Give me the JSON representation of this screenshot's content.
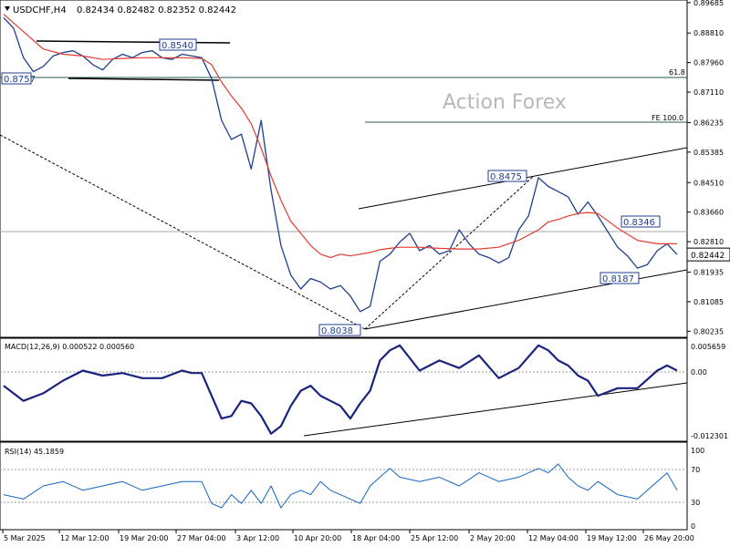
{
  "header": {
    "symbol": "USDCHF,H4",
    "ohlc": "0.82434 0.82482 0.82352 0.82442"
  },
  "watermark": "Action Forex",
  "macd": {
    "label": "MACD(12,26,9) 0.000522 0.000560",
    "ticks": [
      "0.005659",
      "0.00",
      "-0.012301"
    ]
  },
  "rsi": {
    "label": "RSI(14) 45.1859",
    "ticks": [
      "100",
      "70",
      "30",
      "0"
    ]
  },
  "annotations": {
    "fib_618": "61.8",
    "fe_100": "FE 100.0",
    "box_08540": "0.8540",
    "box_08757": "0.8757",
    "box_08475": "0.8475",
    "box_08038": "0.8038",
    "box_08346": "0.8346",
    "box_08187": "0.8187"
  },
  "chart_data": [
    {
      "type": "line",
      "panel": "price",
      "y_ticks": [
        "0.89685",
        "0.88810",
        "0.87960",
        "0.87110",
        "0.86235",
        "0.85385",
        "0.84510",
        "0.83660",
        "0.82810",
        "0.81935",
        "0.81085",
        "0.80235"
      ],
      "current_price": "0.82442",
      "x_ticks": [
        "5 Mar 2025",
        "12 Mar 12:00",
        "19 Mar 20:00",
        "27 Mar 04:00",
        "3 Apr 12:00",
        "10 Apr 20:00",
        "18 Apr 04:00",
        "25 Apr 12:00",
        "2 May 20:00",
        "12 May 04:00",
        "19 May 12:00",
        "26 May 20:00"
      ],
      "ylim": [
        0.8006,
        0.8976
      ],
      "series": [
        {
          "key": "price",
          "color": "#1f3f8f",
          "x": [
            0,
            3,
            6,
            9,
            12,
            15,
            18,
            21,
            24,
            27,
            30,
            33,
            36,
            39,
            42,
            45,
            48,
            51,
            54,
            57,
            60,
            63,
            66,
            69,
            72,
            75,
            78,
            81,
            84,
            87,
            90,
            93,
            96,
            99,
            102,
            105,
            108,
            111,
            114,
            117,
            120,
            123,
            126,
            129,
            132,
            135,
            138,
            141,
            144,
            147,
            150,
            153,
            156,
            159,
            162,
            165,
            168,
            171,
            174,
            177,
            180,
            183,
            186,
            189,
            192,
            195,
            198,
            201,
            204
          ],
          "values": [
            0.8925,
            0.8895,
            0.881,
            0.877,
            0.8785,
            0.8815,
            0.8825,
            0.883,
            0.8815,
            0.879,
            0.8775,
            0.8805,
            0.882,
            0.881,
            0.8825,
            0.883,
            0.881,
            0.8805,
            0.882,
            0.8815,
            0.881,
            0.875,
            0.863,
            0.8575,
            0.859,
            0.849,
            0.863,
            0.843,
            0.827,
            0.8185,
            0.8145,
            0.8175,
            0.8165,
            0.8145,
            0.8155,
            0.8125,
            0.808,
            0.8095,
            0.8225,
            0.8245,
            0.828,
            0.8305,
            0.8255,
            0.827,
            0.8245,
            0.8255,
            0.8315,
            0.8275,
            0.8245,
            0.8235,
            0.822,
            0.8235,
            0.8315,
            0.8355,
            0.8465,
            0.844,
            0.8425,
            0.841,
            0.836,
            0.8395,
            0.8355,
            0.831,
            0.8265,
            0.824,
            0.8205,
            0.8215,
            0.8255,
            0.8275,
            0.8244
          ]
        },
        {
          "key": "ma",
          "color": "#e23a2e",
          "x": [
            0,
            6,
            12,
            18,
            24,
            30,
            36,
            42,
            48,
            54,
            60,
            63,
            66,
            69,
            72,
            75,
            78,
            81,
            84,
            87,
            90,
            93,
            96,
            99,
            102,
            105,
            108,
            111,
            114,
            117,
            120,
            126,
            132,
            138,
            144,
            150,
            156,
            162,
            165,
            168,
            171,
            174,
            177,
            180,
            186,
            192,
            198,
            204
          ],
          "values": [
            0.8935,
            0.8885,
            0.8835,
            0.882,
            0.8815,
            0.8805,
            0.8808,
            0.881,
            0.881,
            0.881,
            0.8808,
            0.879,
            0.874,
            0.87,
            0.8665,
            0.862,
            0.855,
            0.847,
            0.84,
            0.834,
            0.8305,
            0.827,
            0.8245,
            0.8235,
            0.8245,
            0.824,
            0.8245,
            0.825,
            0.8258,
            0.8262,
            0.8265,
            0.8265,
            0.8262,
            0.826,
            0.826,
            0.8265,
            0.8285,
            0.8315,
            0.8338,
            0.8345,
            0.8355,
            0.8362,
            0.8365,
            0.8362,
            0.832,
            0.8285,
            0.8275,
            0.8275
          ]
        }
      ]
    },
    {
      "type": "line",
      "panel": "macd",
      "ylim": [
        -0.0135,
        0.0069
      ],
      "series": [
        {
          "key": "macd",
          "color": "#1a237e",
          "x": [
            0,
            6,
            12,
            18,
            24,
            30,
            36,
            42,
            48,
            54,
            57,
            60,
            63,
            66,
            69,
            72,
            75,
            78,
            81,
            84,
            87,
            90,
            93,
            96,
            99,
            102,
            105,
            108,
            111,
            114,
            117,
            120,
            126,
            132,
            138,
            144,
            150,
            156,
            162,
            165,
            168,
            171,
            174,
            177,
            180,
            186,
            192,
            198,
            201,
            204
          ],
          "values": [
            -0.0025,
            -0.0055,
            -0.004,
            -0.0015,
            0.0005,
            -0.0005,
            0.0,
            -0.001,
            -0.001,
            0.0005,
            0.0,
            0.0,
            -0.0045,
            -0.009,
            -0.0085,
            -0.0055,
            -0.006,
            -0.0085,
            -0.012,
            -0.0105,
            -0.0065,
            -0.0035,
            -0.0025,
            -0.0045,
            -0.0055,
            -0.0065,
            -0.009,
            -0.006,
            -0.0035,
            0.0025,
            0.0045,
            0.0055,
            0.0005,
            0.0025,
            0.001,
            0.0035,
            -0.001,
            0.001,
            0.0055,
            0.0045,
            0.0025,
            0.0015,
            -0.0005,
            -0.0015,
            -0.0045,
            -0.003,
            -0.003,
            0.0005,
            0.0015,
            0.0005
          ]
        }
      ]
    },
    {
      "type": "line",
      "panel": "rsi",
      "ylim": [
        0,
        100
      ],
      "series": [
        {
          "key": "rsi",
          "color": "#1565c0",
          "x": [
            0,
            6,
            12,
            18,
            24,
            30,
            36,
            42,
            48,
            54,
            60,
            63,
            66,
            69,
            72,
            75,
            78,
            81,
            84,
            87,
            90,
            93,
            96,
            99,
            102,
            105,
            108,
            111,
            114,
            117,
            120,
            126,
            132,
            138,
            144,
            150,
            156,
            162,
            165,
            168,
            171,
            174,
            177,
            180,
            186,
            192,
            198,
            201,
            204
          ],
          "values": [
            40,
            35,
            50,
            55,
            45,
            50,
            55,
            45,
            50,
            55,
            55,
            30,
            25,
            40,
            30,
            45,
            30,
            50,
            25,
            40,
            45,
            40,
            55,
            45,
            40,
            35,
            30,
            50,
            60,
            70,
            60,
            55,
            60,
            50,
            65,
            55,
            60,
            70,
            65,
            75,
            60,
            50,
            45,
            55,
            40,
            35,
            55,
            65,
            45
          ]
        }
      ]
    }
  ]
}
